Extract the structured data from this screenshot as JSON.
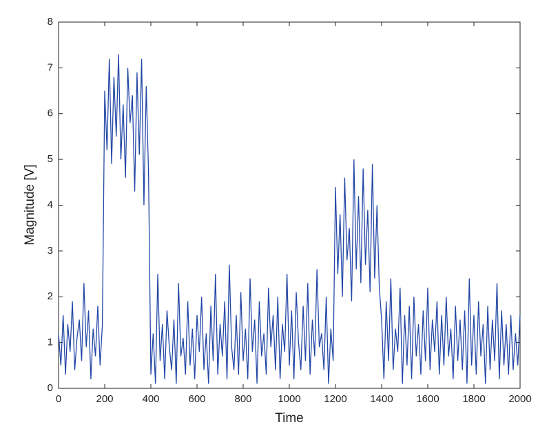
{
  "chart_data": {
    "type": "line",
    "xlabel": "Time",
    "ylabel": "Magnitude [V]",
    "color": "#2347a6",
    "xlim": [
      0,
      2000
    ],
    "ylim": [
      0,
      8
    ],
    "xticks": [
      0,
      200,
      400,
      600,
      800,
      1000,
      1200,
      1400,
      1600,
      1800,
      2000
    ],
    "yticks": [
      0,
      1,
      2,
      3,
      4,
      5,
      6,
      7,
      8
    ],
    "x": [
      0,
      10,
      20,
      30,
      40,
      50,
      60,
      70,
      80,
      90,
      100,
      110,
      120,
      130,
      140,
      150,
      160,
      170,
      180,
      190,
      200,
      210,
      220,
      230,
      240,
      250,
      260,
      270,
      280,
      290,
      300,
      310,
      320,
      330,
      340,
      350,
      360,
      370,
      380,
      390,
      400,
      410,
      420,
      430,
      440,
      450,
      460,
      470,
      480,
      490,
      500,
      510,
      520,
      530,
      540,
      550,
      560,
      570,
      580,
      590,
      600,
      610,
      620,
      630,
      640,
      650,
      660,
      670,
      680,
      690,
      700,
      710,
      720,
      730,
      740,
      750,
      760,
      770,
      780,
      790,
      800,
      810,
      820,
      830,
      840,
      850,
      860,
      870,
      880,
      890,
      900,
      910,
      920,
      930,
      940,
      950,
      960,
      970,
      980,
      990,
      1000,
      1010,
      1020,
      1030,
      1040,
      1050,
      1060,
      1070,
      1080,
      1090,
      1100,
      1110,
      1120,
      1130,
      1140,
      1150,
      1160,
      1170,
      1180,
      1190,
      1200,
      1210,
      1220,
      1230,
      1240,
      1250,
      1260,
      1270,
      1280,
      1290,
      1300,
      1310,
      1320,
      1330,
      1340,
      1350,
      1360,
      1370,
      1380,
      1390,
      1400,
      1410,
      1420,
      1430,
      1440,
      1450,
      1460,
      1470,
      1480,
      1490,
      1500,
      1510,
      1520,
      1530,
      1540,
      1550,
      1560,
      1570,
      1580,
      1590,
      1600,
      1610,
      1620,
      1630,
      1640,
      1650,
      1660,
      1670,
      1680,
      1690,
      1700,
      1710,
      1720,
      1730,
      1740,
      1750,
      1760,
      1770,
      1780,
      1790,
      1800,
      1810,
      1820,
      1830,
      1840,
      1850,
      1860,
      1870,
      1880,
      1890,
      1900,
      1910,
      1920,
      1930,
      1940,
      1950,
      1960,
      1970,
      1980,
      1990,
      2000
    ],
    "values": [
      1.2,
      0.5,
      1.6,
      0.3,
      1.4,
      0.8,
      1.9,
      0.4,
      1.1,
      1.5,
      0.6,
      2.3,
      0.9,
      1.7,
      0.2,
      1.3,
      0.7,
      1.8,
      0.5,
      1.4,
      6.5,
      5.2,
      7.2,
      4.9,
      6.8,
      5.5,
      7.3,
      5.0,
      6.2,
      4.6,
      7.0,
      5.8,
      6.4,
      4.3,
      6.9,
      5.1,
      7.2,
      4.0,
      6.6,
      4.7,
      0.3,
      1.2,
      0.1,
      2.5,
      0.6,
      1.4,
      0.2,
      1.7,
      0.9,
      0.4,
      1.5,
      0.1,
      2.3,
      0.7,
      1.1,
      0.3,
      1.9,
      0.5,
      1.3,
      0.2,
      1.6,
      0.8,
      2.0,
      0.4,
      1.2,
      0.1,
      1.8,
      0.6,
      2.5,
      0.3,
      1.4,
      0.7,
      1.9,
      0.2,
      2.7,
      0.9,
      0.4,
      1.6,
      0.3,
      2.1,
      0.6,
      1.3,
      0.2,
      2.4,
      0.8,
      1.5,
      0.1,
      1.9,
      0.7,
      1.2,
      0.3,
      2.2,
      0.9,
      1.6,
      0.4,
      2.0,
      0.2,
      1.4,
      0.8,
      2.5,
      0.5,
      1.7,
      0.2,
      2.1,
      1.0,
      0.4,
      1.8,
      0.6,
      2.3,
      0.3,
      1.5,
      0.7,
      2.6,
      0.9,
      1.2,
      0.4,
      2.0,
      0.1,
      1.3,
      0.6,
      4.4,
      2.5,
      3.8,
      2.0,
      4.6,
      2.8,
      3.5,
      1.9,
      5.0,
      2.6,
      4.2,
      2.3,
      4.8,
      2.7,
      3.9,
      2.1,
      4.9,
      2.4,
      4.0,
      2.2,
      1.5,
      0.2,
      1.9,
      0.6,
      2.4,
      0.4,
      1.3,
      0.8,
      2.2,
      0.1,
      1.6,
      0.5,
      1.8,
      0.2,
      2.0,
      0.7,
      1.4,
      0.3,
      1.7,
      0.6,
      2.2,
      0.4,
      1.5,
      0.8,
      1.9,
      0.3,
      1.6,
      0.5,
      2.0,
      0.7,
      1.3,
      0.2,
      1.8,
      0.6,
      1.5,
      0.4,
      1.7,
      0.1,
      2.4,
      0.5,
      1.6,
      0.3,
      1.9,
      0.7,
      1.4,
      0.1,
      1.8,
      0.4,
      1.5,
      0.6,
      2.3,
      0.2,
      1.7,
      0.5,
      1.4,
      0.3,
      1.6,
      0.4,
      1.2,
      0.5,
      1.6
    ]
  }
}
